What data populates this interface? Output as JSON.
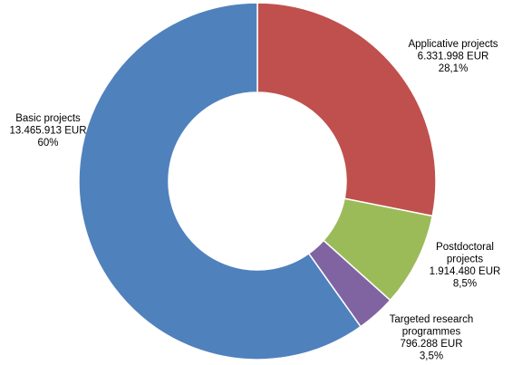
{
  "chart_data": {
    "type": "pie",
    "donut": true,
    "title": "",
    "legend": "none",
    "slices": [
      {
        "name": "Applicative projects",
        "value": 6331998,
        "percent": 28.1,
        "value_label": "6.331.998 EUR",
        "percent_label": "28,1%",
        "color": "#C0504D"
      },
      {
        "name": "Postdoctoral projects",
        "value": 1914480,
        "percent": 8.5,
        "value_label": "1.914.480 EUR",
        "percent_label": "8,5%",
        "color": "#9BBB59"
      },
      {
        "name": "Targeted research programmes",
        "value": 796288,
        "percent": 3.5,
        "value_label": "796.288 EUR",
        "percent_label": "3,5%",
        "color": "#8064A2"
      },
      {
        "name": "Basic projects",
        "value": 13465913,
        "percent": 60,
        "value_label": "13.465.913 EUR",
        "percent_label": "60%",
        "color": "#4F81BD"
      }
    ],
    "label_lines": [
      [
        "Applicative projects",
        "6.331.998 EUR",
        "28,1%"
      ],
      [
        "Postdoctoral",
        "projects",
        "1.914.480 EUR",
        "8,5%"
      ],
      [
        "Targeted research",
        "programmes",
        "796.288 EUR",
        "3,5%"
      ],
      [
        "Basic projects",
        "13.465.913 EUR",
        "60%"
      ]
    ]
  }
}
